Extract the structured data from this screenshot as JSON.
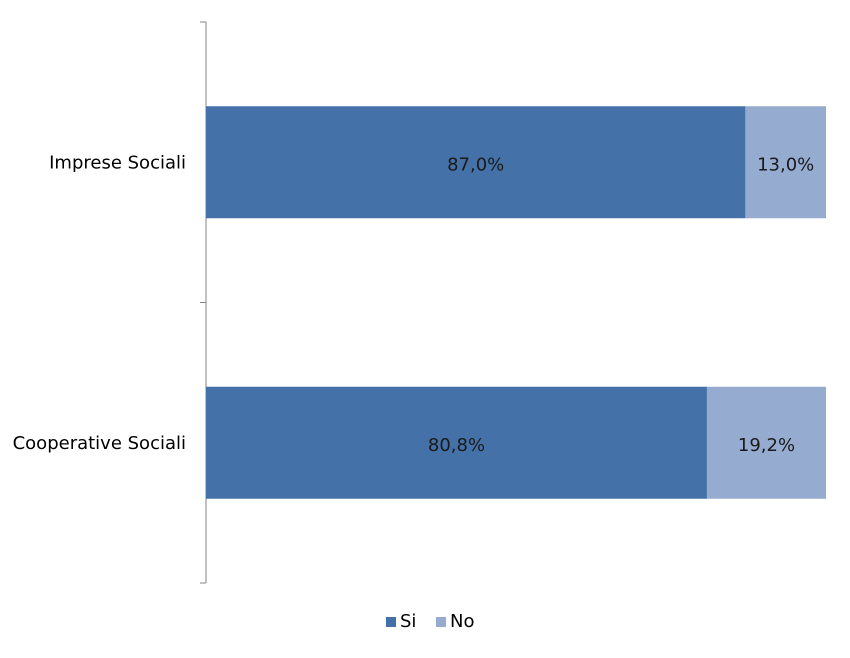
{
  "chart_data": {
    "type": "bar",
    "orientation": "horizontal",
    "stacked": true,
    "categories": [
      "Imprese Sociali",
      "Cooperative Sociali"
    ],
    "series": [
      {
        "name": "Si",
        "values": [
          87.0,
          80.8
        ],
        "labels": [
          "87,0%",
          "80,8%"
        ],
        "color": "#4472a8"
      },
      {
        "name": "No",
        "values": [
          13.0,
          19.2
        ],
        "labels": [
          "13,0%",
          "19,2%"
        ],
        "color": "#95abd0"
      }
    ],
    "value_unit": "%",
    "xlim": [
      0,
      100
    ],
    "grid": false,
    "legend_position": "bottom",
    "title": "",
    "xlabel": "",
    "ylabel": ""
  }
}
